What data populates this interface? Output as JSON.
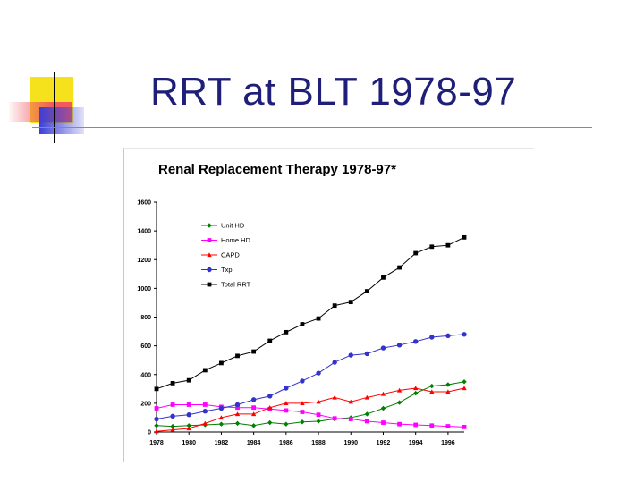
{
  "slide": {
    "title": "RRT at BLT 1978-97",
    "colors": {
      "title": "#1f1f7a",
      "deco_yellow": "#f5e11c",
      "deco_red": "#f0595d",
      "deco_blue": "#3b3fd6"
    }
  },
  "chart_data": {
    "type": "line",
    "title": "Renal Replacement Therapy 1978-97*",
    "xlabel": "",
    "ylabel": "",
    "x": [
      1978,
      1979,
      1980,
      1981,
      1982,
      1983,
      1984,
      1985,
      1986,
      1987,
      1988,
      1989,
      1990,
      1991,
      1992,
      1993,
      1994,
      1995,
      1996,
      1997
    ],
    "xticks": [
      "1978",
      "1980",
      "1982",
      "1984",
      "1986",
      "1988",
      "1990",
      "1992",
      "1994",
      "1996"
    ],
    "xtick_values": [
      1978,
      1980,
      1982,
      1984,
      1986,
      1988,
      1990,
      1992,
      1994,
      1996
    ],
    "xlim": [
      1978,
      1997
    ],
    "yticks": [
      "0",
      "200",
      "400",
      "600",
      "800",
      "1000",
      "1200",
      "1400",
      "1600"
    ],
    "ytick_values": [
      0,
      200,
      400,
      600,
      800,
      1000,
      1200,
      1400,
      1600
    ],
    "ylim": [
      0,
      1600
    ],
    "grid": false,
    "legend_position": "top-left",
    "series": [
      {
        "name": "Unit HD",
        "color": "#008000",
        "marker": "diamond",
        "values": [
          45,
          40,
          45,
          50,
          55,
          60,
          45,
          65,
          55,
          70,
          75,
          90,
          100,
          125,
          165,
          205,
          270,
          320,
          330,
          350
        ]
      },
      {
        "name": "Home HD",
        "color": "#ff00ff",
        "marker": "square",
        "values": [
          165,
          190,
          190,
          190,
          175,
          170,
          170,
          160,
          150,
          140,
          120,
          95,
          90,
          75,
          65,
          55,
          50,
          45,
          40,
          35
        ]
      },
      {
        "name": "CAPD",
        "color": "#ff0000",
        "marker": "triangle",
        "values": [
          5,
          15,
          25,
          60,
          100,
          125,
          125,
          170,
          200,
          200,
          210,
          240,
          210,
          240,
          265,
          290,
          305,
          280,
          280,
          305
        ]
      },
      {
        "name": "Txp",
        "color": "#3333cc",
        "marker": "circle",
        "values": [
          90,
          110,
          120,
          145,
          165,
          190,
          225,
          250,
          305,
          355,
          410,
          485,
          535,
          545,
          585,
          605,
          630,
          660,
          670,
          680
        ]
      },
      {
        "name": "Total RRT",
        "color": "#000000",
        "marker": "square",
        "values": [
          300,
          340,
          360,
          430,
          480,
          530,
          560,
          635,
          695,
          750,
          790,
          880,
          905,
          980,
          1075,
          1145,
          1245,
          1290,
          1300,
          1355
        ]
      }
    ]
  }
}
